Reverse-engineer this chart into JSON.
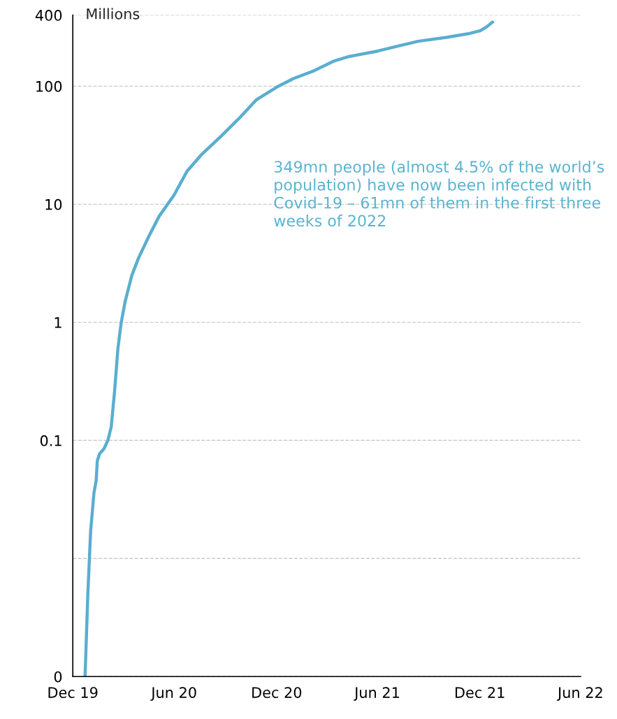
{
  "chart_data": {
    "type": "line",
    "ylabel": "Millions",
    "log": "y",
    "grid": "y",
    "legend": false,
    "marker": "none",
    "line_style": "solid",
    "x": [
      "2020-01-22",
      "2020-01-27",
      "2020-02-01",
      "2020-02-07",
      "2020-02-11",
      "2020-02-13",
      "2020-02-17",
      "2020-02-25",
      "2020-03-03",
      "2020-03-09",
      "2020-03-15",
      "2020-03-21",
      "2020-03-27",
      "2020-04-03",
      "2020-04-15",
      "2020-04-27",
      "2020-05-16",
      "2020-06-03",
      "2020-06-30",
      "2020-07-23",
      "2020-08-17",
      "2020-09-23",
      "2020-10-24",
      "2020-11-25",
      "2020-12-31",
      "2021-01-30",
      "2021-03-08",
      "2021-04-14",
      "2021-05-09",
      "2021-06-30",
      "2021-08-05",
      "2021-09-11",
      "2021-11-03",
      "2021-12-10",
      "2021-12-31",
      "2022-01-11",
      "2022-01-23"
    ],
    "series": [
      {
        "color": "#5aaecf",
        "values": [
          0.001,
          0.005,
          0.017,
          0.036,
          0.046,
          0.067,
          0.077,
          0.085,
          0.1,
          0.13,
          0.26,
          0.6,
          1.0,
          1.5,
          2.5,
          3.5,
          5.4,
          7.9,
          12,
          19,
          26,
          38,
          53,
          77,
          98,
          116,
          135,
          164,
          178,
          198,
          218,
          240,
          260,
          278,
          294,
          315,
          349
        ]
      }
    ],
    "xlim": [
      "2019-12-31",
      "2022-06-30"
    ],
    "xticks": [
      {
        "value": "2019-12-31",
        "label": "Dec 19"
      },
      {
        "value": "2020-06-30",
        "label": "Jun 20"
      },
      {
        "value": "2020-12-31",
        "label": "Dec 20"
      },
      {
        "value": "2021-06-30",
        "label": "Jun 21"
      },
      {
        "value": "2021-12-31",
        "label": "Dec 21"
      },
      {
        "value": "2022-06-30",
        "label": "Jun 22"
      }
    ],
    "ylim": [
      0.001,
      400
    ],
    "yticks": [
      {
        "value": 0.001,
        "label": "0"
      },
      {
        "value": 0.01,
        "label": null
      },
      {
        "value": 0.1,
        "label": "0.1"
      },
      1,
      10,
      100,
      400
    ],
    "annotations": [
      "349mn people (almost 4.5% of the world’s population) have now been infected with Covid-19 – 61mn of them in the first three weeks of 2022"
    ]
  }
}
